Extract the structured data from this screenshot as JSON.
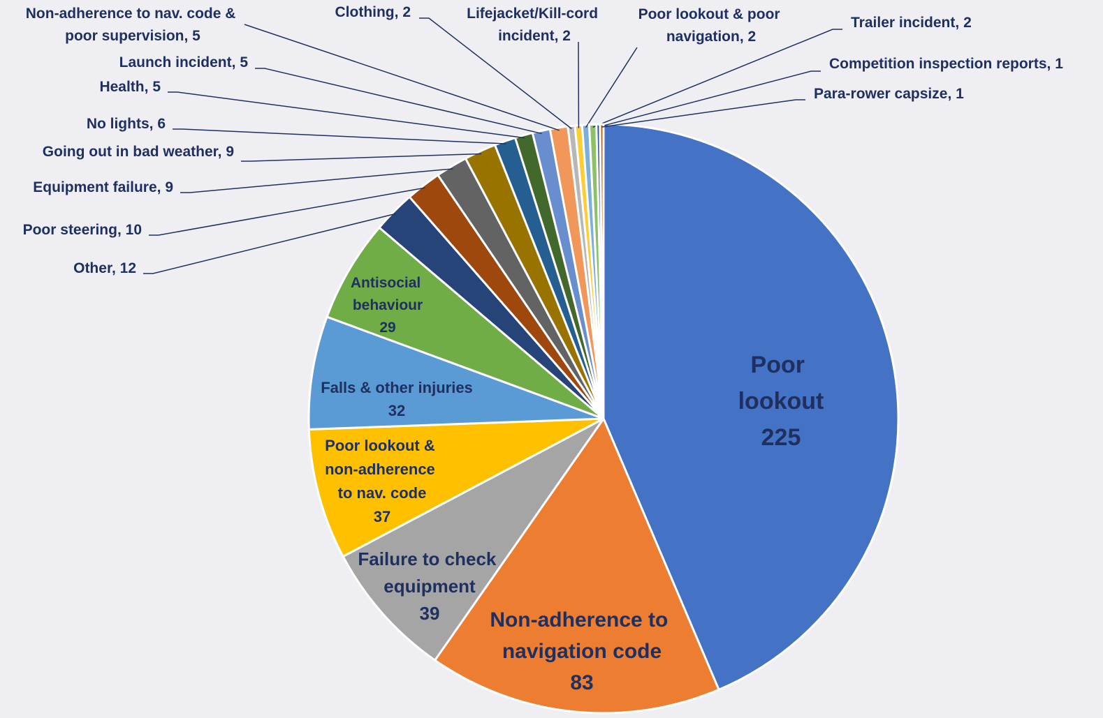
{
  "chart_data": {
    "type": "pie",
    "categories": [
      "Poor lookout",
      "Non-adherence to navigation code",
      "Failure to check equipment",
      "Poor lookout & non-adherence to nav. code",
      "Falls & other injuries",
      "Antisocial behaviour",
      "Other",
      "Poor steering",
      "Equipment failure",
      "Going out in bad weather",
      "No lights",
      "Health",
      "Launch incident",
      "Non-adherence to nav. code & poor supervision",
      "Clothing",
      "Lifejacket/Kill-cord incident",
      "Poor lookout & poor navigation",
      "Trailer incident",
      "Competition inspection reports",
      "Para-rower capsize"
    ],
    "values": [
      225,
      83,
      39,
      37,
      32,
      29,
      12,
      10,
      9,
      9,
      6,
      5,
      5,
      5,
      2,
      2,
      2,
      2,
      1,
      1
    ],
    "colors": [
      "#4472c4",
      "#ed7d31",
      "#a5a5a5",
      "#ffc000",
      "#5b9bd5",
      "#70ad47",
      "#264478",
      "#9e480e",
      "#636363",
      "#997300",
      "#255e91",
      "#43682b",
      "#698ed0",
      "#f1975a",
      "#b7b7b7",
      "#ffcd33",
      "#7cafdd",
      "#8cc168",
      "#335aa1",
      "#d26012"
    ],
    "label_separator": ", "
  }
}
